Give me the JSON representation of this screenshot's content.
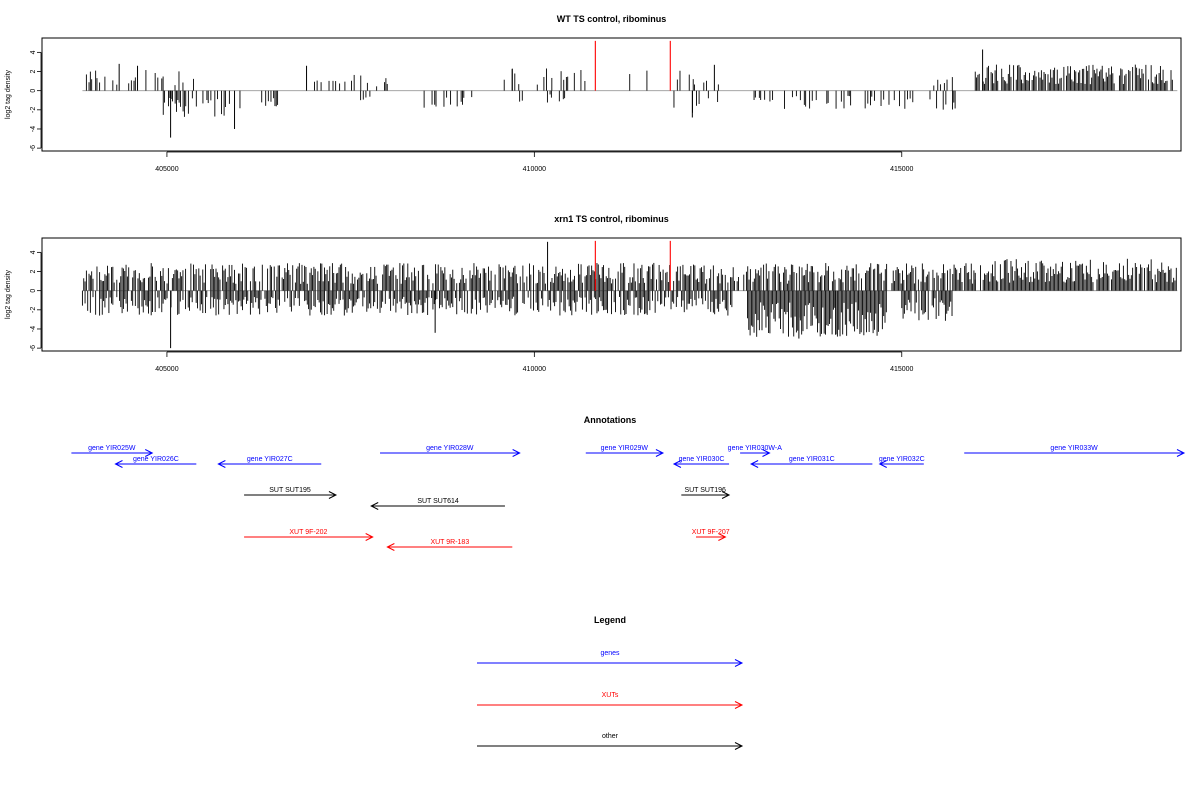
{
  "chart_data": [
    {
      "type": "bar",
      "title": "WT TS control, ribominus",
      "ylabel": "log2 tag density",
      "xlim": [
        403300,
        418800
      ],
      "ylim": [
        -6.3,
        5.5
      ],
      "xticks": [
        405000,
        410000,
        415000
      ],
      "yticks": [
        -6,
        -4,
        -2,
        0,
        2,
        4
      ],
      "markers": {
        "color": "#ff0000",
        "x": [
          410830,
          411850
        ],
        "values": [
          5.2,
          5.2
        ]
      },
      "segments": [
        {
          "from": 403850,
          "to": 405400,
          "seed": 11,
          "mean": 1.5,
          "prob": 0.25
        },
        {
          "from": 404950,
          "to": 406000,
          "seed": 12,
          "mean": -2.0,
          "prob": 0.55
        },
        {
          "from": 406200,
          "to": 406600,
          "seed": 13,
          "mean": -1.2,
          "prob": 0.2
        },
        {
          "from": 406900,
          "to": 408000,
          "seed": 14,
          "mean": 1.2,
          "prob": 0.2
        },
        {
          "from": 407600,
          "to": 407800,
          "seed": 15,
          "mean": -1.0,
          "prob": 0.3
        },
        {
          "from": 408500,
          "to": 409200,
          "seed": 16,
          "mean": -1.5,
          "prob": 0.25
        },
        {
          "from": 409500,
          "to": 410700,
          "seed": 17,
          "mean": 1.6,
          "prob": 0.2
        },
        {
          "from": 409800,
          "to": 410600,
          "seed": 18,
          "mean": -1.0,
          "prob": 0.15
        },
        {
          "from": 411100,
          "to": 412600,
          "seed": 19,
          "mean": 1.5,
          "prob": 0.15
        },
        {
          "from": 411900,
          "to": 412600,
          "seed": 20,
          "mean": -1.6,
          "prob": 0.2
        },
        {
          "from": 412900,
          "to": 415800,
          "seed": 21,
          "mean": -1.4,
          "prob": 0.3
        },
        {
          "from": 415400,
          "to": 415700,
          "seed": 22,
          "mean": 1.2,
          "prob": 0.3
        },
        {
          "from": 416000,
          "to": 418750,
          "seed": 23,
          "mean": 1.9,
          "prob": 0.8
        }
      ],
      "peaks": [
        {
          "x": 404350,
          "value": 2.8
        },
        {
          "x": 404600,
          "value": 2.6
        },
        {
          "x": 405050,
          "value": -4.9
        },
        {
          "x": 405920,
          "value": -4.0
        },
        {
          "x": 406900,
          "value": 2.6
        },
        {
          "x": 409700,
          "value": 2.3
        },
        {
          "x": 412450,
          "value": 2.7
        },
        {
          "x": 412150,
          "value": -2.8
        },
        {
          "x": 416100,
          "value": 4.3
        }
      ]
    },
    {
      "type": "bar",
      "title": "xrn1 TS control, ribominus",
      "ylabel": "log2 tag density",
      "xlim": [
        403300,
        418800
      ],
      "ylim": [
        -6.3,
        5.5
      ],
      "xticks": [
        405000,
        410000,
        415000
      ],
      "yticks": [
        -6,
        -4,
        -2,
        0,
        2,
        4
      ],
      "markers": {
        "color": "#ff0000",
        "x": [
          410830,
          411850
        ],
        "values": [
          5.2,
          5.2
        ]
      },
      "segments": [
        {
          "from": 403850,
          "to": 416000,
          "seed": 31,
          "mean": 2.0,
          "prob": 0.75
        },
        {
          "from": 403850,
          "to": 412700,
          "seed": 32,
          "mean": -1.8,
          "prob": 0.7
        },
        {
          "from": 412900,
          "to": 414800,
          "seed": 33,
          "mean": -3.4,
          "prob": 1.0
        },
        {
          "from": 415000,
          "to": 415700,
          "seed": 34,
          "mean": -2.2,
          "prob": 0.8
        },
        {
          "from": 416000,
          "to": 418750,
          "seed": 35,
          "mean": 2.3,
          "prob": 0.95
        }
      ],
      "peaks": [
        {
          "x": 405050,
          "value": -6.0
        },
        {
          "x": 410180,
          "value": 5.1
        },
        {
          "x": 408650,
          "value": -4.4
        },
        {
          "x": 413600,
          "value": -5.0
        },
        {
          "x": 414100,
          "value": -4.6
        }
      ]
    },
    {
      "type": "annotation-track",
      "title": "Annotations",
      "xlim": [
        403300,
        418800
      ],
      "features": [
        {
          "label": "gene YIR025W",
          "start": 403700,
          "end": 404800,
          "strand": "+",
          "row": 0,
          "color": "#0000ff"
        },
        {
          "label": "gene YIR026C",
          "start": 404300,
          "end": 405400,
          "strand": "-",
          "row": 1,
          "color": "#0000ff"
        },
        {
          "label": "gene YIR027C",
          "start": 405700,
          "end": 407100,
          "strand": "-",
          "row": 1,
          "color": "#0000ff"
        },
        {
          "label": "gene YIR028W",
          "start": 407900,
          "end": 409800,
          "strand": "+",
          "row": 0,
          "color": "#0000ff"
        },
        {
          "label": "gene YIR029W",
          "start": 410700,
          "end": 411750,
          "strand": "+",
          "row": 0,
          "color": "#0000ff"
        },
        {
          "label": "gene YIR030C",
          "start": 411900,
          "end": 412650,
          "strand": "-",
          "row": 1,
          "color": "#0000ff"
        },
        {
          "label": "gene YIR030W-A",
          "start": 412800,
          "end": 413200,
          "strand": "+",
          "row": 0,
          "color": "#0000ff"
        },
        {
          "label": "gene YIR031C",
          "start": 412950,
          "end": 414600,
          "strand": "-",
          "row": 1,
          "color": "#0000ff"
        },
        {
          "label": "gene YIR032C",
          "start": 414700,
          "end": 415300,
          "strand": "-",
          "row": 1,
          "color": "#0000ff"
        },
        {
          "label": "gene YIR033W",
          "start": 415850,
          "end": 419200,
          "strand": "+",
          "row": 0,
          "color": "#0000ff"
        },
        {
          "label": "SUT SUT195",
          "start": 406050,
          "end": 407300,
          "strand": "+",
          "row": 2,
          "color": "#000000"
        },
        {
          "label": "SUT SUT614",
          "start": 407780,
          "end": 409600,
          "strand": "-",
          "row": 3,
          "color": "#000000"
        },
        {
          "label": "SUT SUT196",
          "start": 412000,
          "end": 412650,
          "strand": "+",
          "row": 2,
          "color": "#000000"
        },
        {
          "label": "XUT 9F-202",
          "start": 406050,
          "end": 407800,
          "strand": "+",
          "row": 4,
          "color": "#ff0000"
        },
        {
          "label": "XUT 9R-183",
          "start": 408000,
          "end": 409700,
          "strand": "-",
          "row": 5,
          "color": "#ff0000"
        },
        {
          "label": "XUT 9F-207",
          "start": 412200,
          "end": 412600,
          "strand": "+",
          "row": 4,
          "color": "#ff0000"
        }
      ]
    }
  ],
  "legend": {
    "title": "Legend",
    "items": [
      {
        "label": "genes",
        "color": "#0000ff"
      },
      {
        "label": "XUTs",
        "color": "#ff0000"
      },
      {
        "label": "other",
        "color": "#000000"
      }
    ]
  }
}
